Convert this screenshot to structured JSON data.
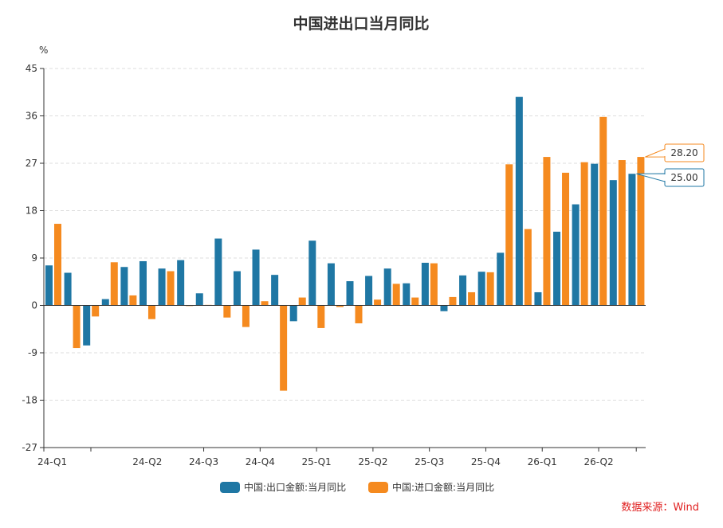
{
  "chart_data": {
    "type": "bar",
    "title": "中国进出口当月同比",
    "unit": "%",
    "source": "数据来源：Wind",
    "ylim": [
      -27,
      45
    ],
    "yticks": [
      -27,
      -18,
      -9,
      0,
      9,
      18,
      27,
      36,
      45
    ],
    "grid": true,
    "legend_position": "bottom-center",
    "x_tick_labels": [
      "24-Q1",
      "24-Q2",
      "24-Q3",
      "24-Q4",
      "25-Q1",
      "25-Q2",
      "25-Q3",
      "25-Q4",
      "26-Q1",
      "26-Q2"
    ],
    "x_tick_label_positions": [
      0,
      5.5,
      8.5,
      11.5,
      14.5,
      17.5,
      20.5,
      23.5,
      26.5,
      29.5
    ],
    "x_axis_ticks": [
      0,
      2.5,
      8.5,
      11.5,
      14.5,
      17.5,
      20.5,
      23.5,
      26.5,
      29.5,
      31.5
    ],
    "series": [
      {
        "name": "中国:出口金额:当月同比",
        "color": "#1f77a4",
        "values": [
          7.6,
          6.2,
          -7.6,
          1.2,
          7.3,
          8.4,
          7.0,
          8.6,
          2.3,
          12.7,
          6.5,
          10.6,
          5.8,
          -3.0,
          12.3,
          8.0,
          4.6,
          5.6,
          7.0,
          4.2,
          8.1,
          -1.1,
          5.7,
          6.4,
          10.0,
          39.6,
          2.5,
          14.0,
          19.2,
          26.9,
          23.8,
          25.0
        ],
        "last_value_label": "25.00"
      },
      {
        "name": "中国:进口金额:当月同比",
        "color": "#f58a1f",
        "values": [
          15.5,
          -8.1,
          -2.1,
          8.2,
          1.9,
          -2.6,
          6.5,
          0.0,
          0.1,
          -2.3,
          -4.1,
          0.8,
          -16.2,
          1.5,
          -4.3,
          -0.3,
          -3.4,
          1.1,
          4.1,
          1.5,
          8.0,
          1.6,
          2.5,
          6.3,
          26.8,
          14.5,
          28.2,
          25.2,
          27.2,
          35.8,
          27.6,
          28.2
        ],
        "last_value_label": "28.20"
      }
    ]
  }
}
